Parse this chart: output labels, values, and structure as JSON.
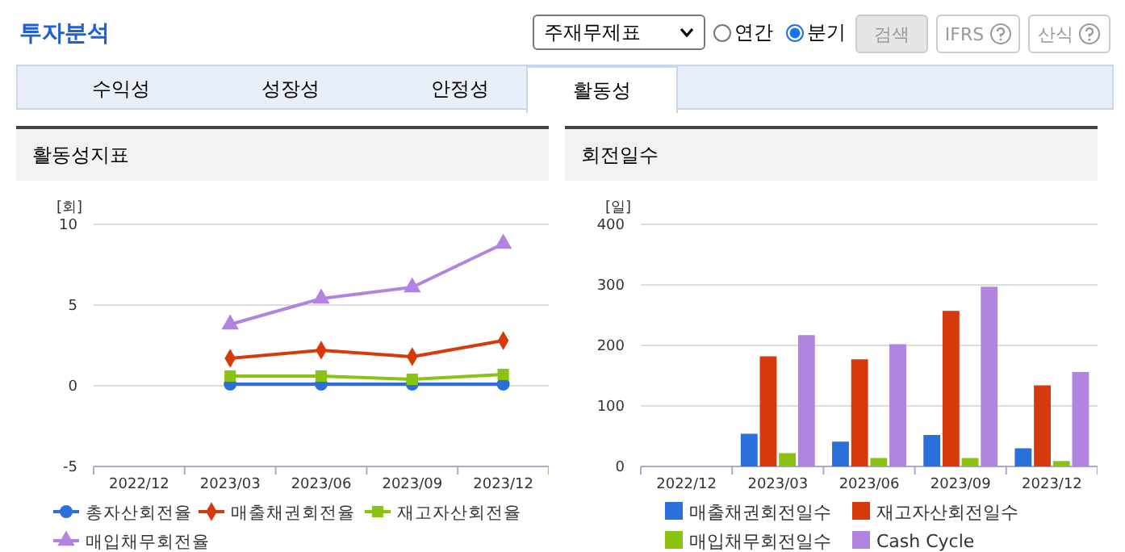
{
  "chart_data": [
    {
      "type": "other",
      "title": "투자분석",
      "annotations": [
        "주재무제표",
        "연간",
        "분기",
        "검색",
        "IFRS",
        "산식",
        "수익성",
        "성장성",
        "안정성",
        "활동성"
      ]
    },
    {
      "type": "line",
      "title": "활동성지표",
      "ylabel": "[회]",
      "categories": [
        "2022/12",
        "2023/03",
        "2023/06",
        "2023/09",
        "2023/12"
      ],
      "ylim": [
        -5,
        10
      ],
      "yticks": [
        -5,
        0,
        5,
        10
      ],
      "grid": "y",
      "legend": "bottom",
      "series": [
        {
          "name": "총자산회전율",
          "color": "#2a6fdb",
          "marker": "circle",
          "values": [
            null,
            0.1,
            0.1,
            0.1,
            0.1
          ]
        },
        {
          "name": "매출채권회전율",
          "color": "#d63a0a",
          "marker": "diamond",
          "values": [
            null,
            1.7,
            2.2,
            1.8,
            2.8
          ]
        },
        {
          "name": "재고자산회전율",
          "color": "#8ac312",
          "marker": "square",
          "values": [
            null,
            0.6,
            0.6,
            0.4,
            0.7
          ]
        },
        {
          "name": "매입채무회전율",
          "color": "#b084e0",
          "marker": "triangle",
          "values": [
            null,
            3.8,
            5.4,
            6.1,
            8.8
          ]
        }
      ]
    },
    {
      "type": "bar",
      "title": "회전일수",
      "ylabel": "[일]",
      "categories": [
        "2022/12",
        "2023/03",
        "2023/06",
        "2023/09",
        "2023/12"
      ],
      "ylim": [
        0,
        400
      ],
      "yticks": [
        0,
        100,
        200,
        300,
        400
      ],
      "grid": "y",
      "legend": "bottom",
      "series": [
        {
          "name": "매출채권회전일수",
          "color": "#2a6fdb",
          "values": [
            null,
            54,
            41,
            52,
            30
          ]
        },
        {
          "name": "재고자산회전일수",
          "color": "#d63a0a",
          "values": [
            null,
            182,
            177,
            257,
            134
          ]
        },
        {
          "name": "매입채무회전일수",
          "color": "#8ac312",
          "values": [
            null,
            22,
            14,
            14,
            9
          ]
        },
        {
          "name": "Cash Cycle",
          "color": "#b084e0",
          "values": [
            null,
            217,
            202,
            297,
            156
          ]
        }
      ]
    }
  ]
}
